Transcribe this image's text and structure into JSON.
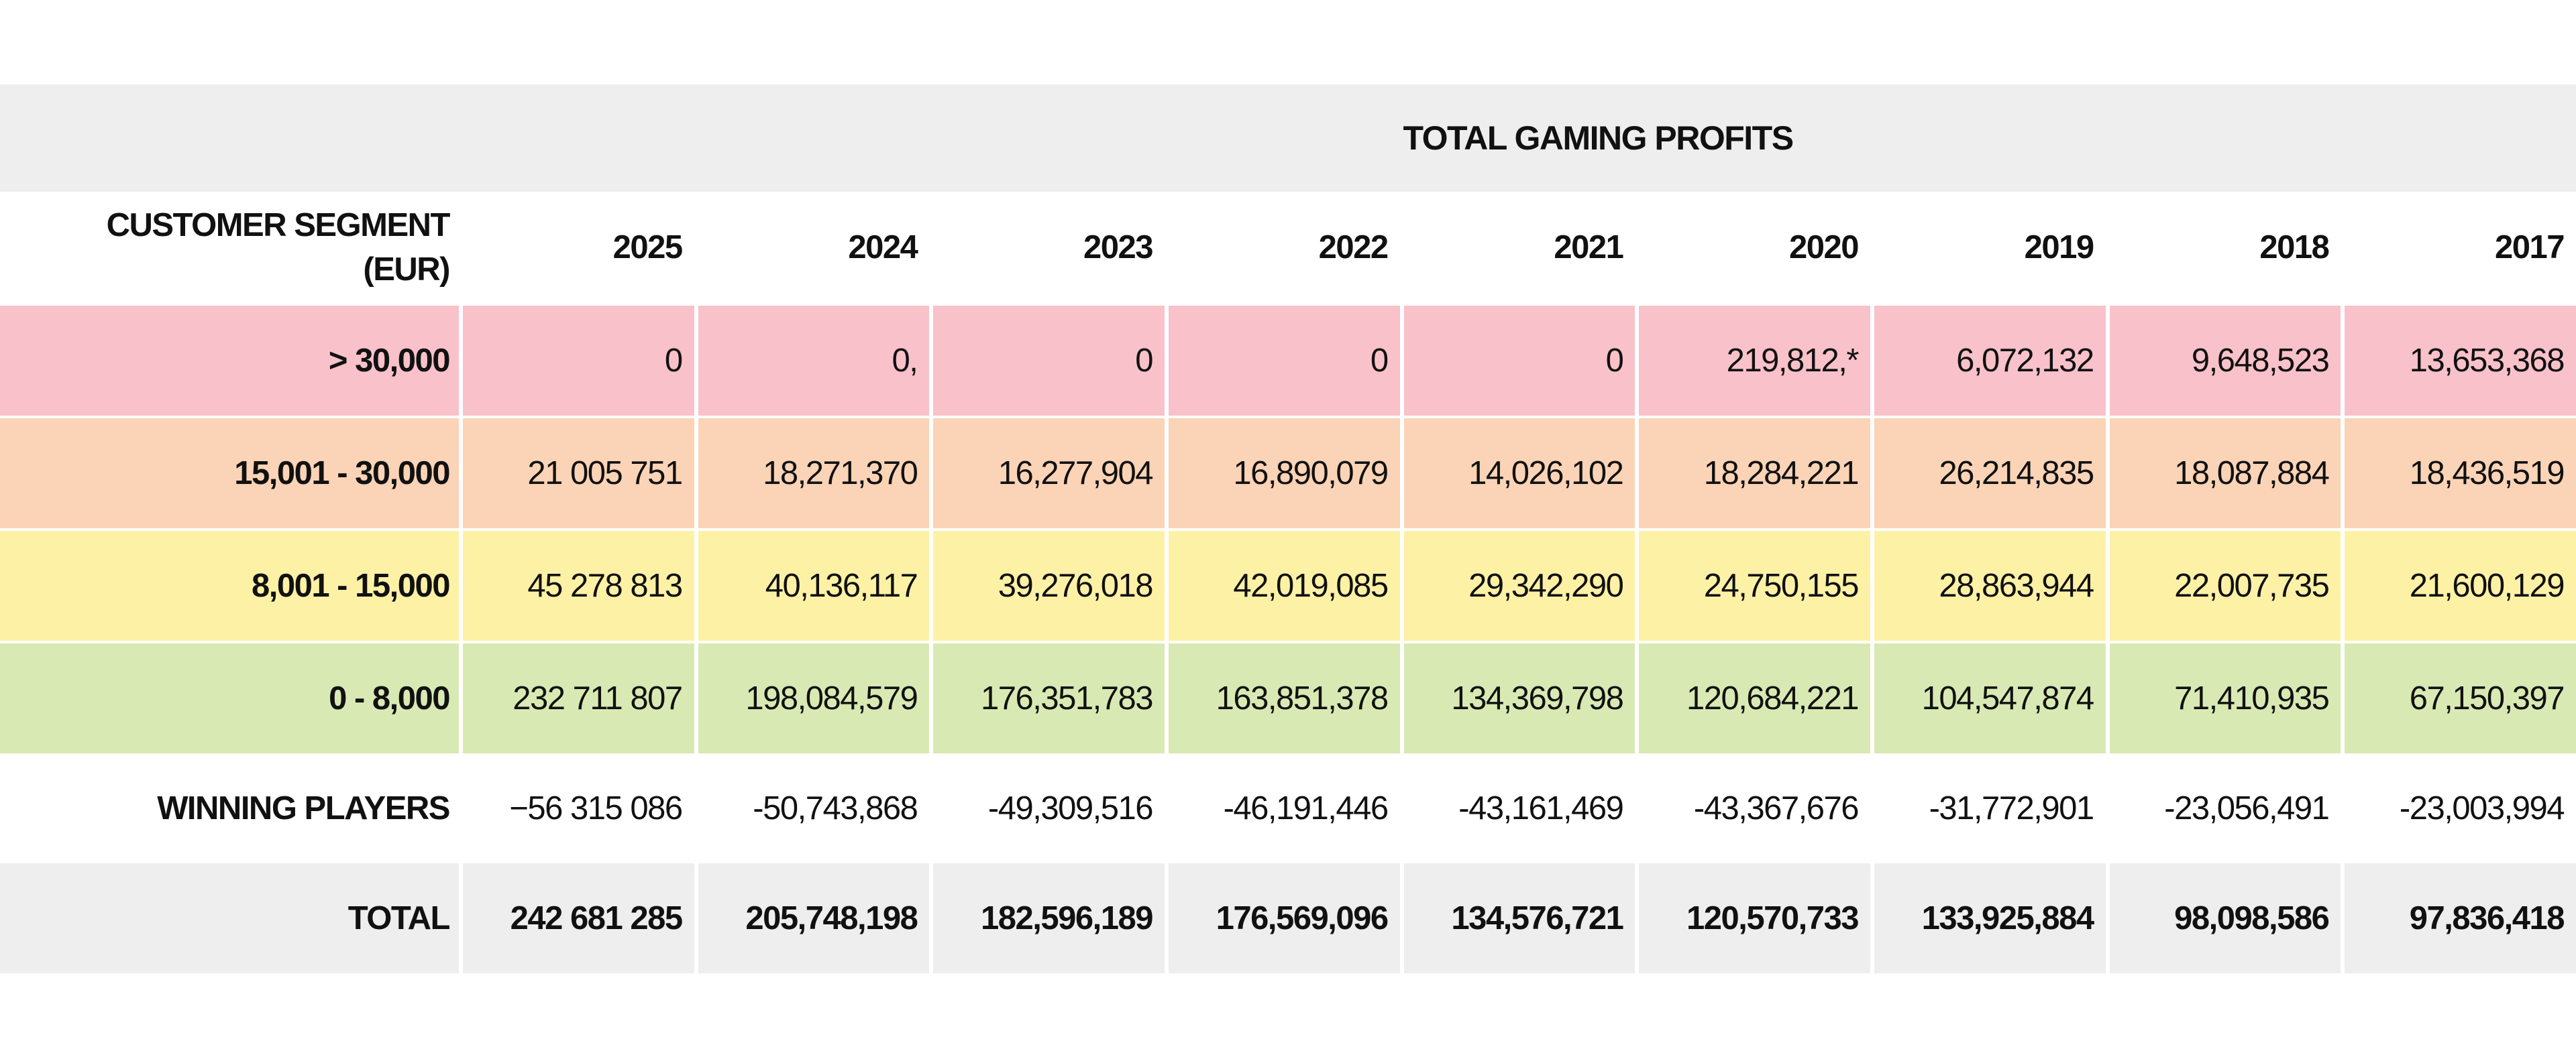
{
  "table": {
    "title": "TOTAL GAMING PROFITS",
    "header_label_line1": "CUSTOMER SEGMENT",
    "header_label_line2": "(EUR)",
    "years": [
      "2025",
      "2024",
      "2023",
      "2022",
      "2021",
      "2020",
      "2019",
      "2018",
      "2017"
    ],
    "rows": [
      {
        "label": "> 30,000",
        "color": "#f9c1c9",
        "values": [
          "0",
          "0,",
          "0",
          "0",
          "0",
          "219,812,*",
          "6,072,132",
          "9,648,523",
          "13,653,368"
        ]
      },
      {
        "label": "15,001 - 30,000",
        "color": "#fbd3b6",
        "values": [
          "21 005 751",
          "18,271,370",
          "16,277,904",
          "16,890,079",
          "14,026,102",
          "18,284,221",
          "26,214,835",
          "18,087,884",
          "18,436,519"
        ]
      },
      {
        "label": "8,001 - 15,000",
        "color": "#fdf1a6",
        "values": [
          "45 278 813",
          "40,136,117",
          "39,276,018",
          "42,019,085",
          "29,342,290",
          "24,750,155",
          "28,863,944",
          "22,007,735",
          "21,600,129"
        ]
      },
      {
        "label": "0 - 8,000",
        "color": "#d9e9b3",
        "values": [
          "232 711 807",
          "198,084,579",
          "176,351,783",
          "163,851,378",
          "134,369,798",
          "120,684,221",
          "104,547,874",
          "71,410,935",
          "67,150,397"
        ]
      },
      {
        "label": "WINNING PLAYERS",
        "color": "#ffffff",
        "values": [
          "−56 315 086",
          "-50,743,868",
          "-49,309,516",
          "-46,191,446",
          "-43,161,469",
          "-43,367,676",
          "-31,772,901",
          "-23,056,491",
          "-23,003,994"
        ]
      },
      {
        "label": "TOTAL",
        "color": "#eeeeee",
        "values": [
          "242 681 285",
          "205,748,198",
          "182,596,189",
          "176,569,096",
          "134,576,721",
          "120,570,733",
          "133,925,884",
          "98,098,586",
          "97,836,418"
        ]
      }
    ]
  },
  "chart_data": {
    "type": "table",
    "title": "TOTAL GAMING PROFITS",
    "columns": [
      "CUSTOMER SEGMENT (EUR)",
      "2025",
      "2024",
      "2023",
      "2022",
      "2021",
      "2020",
      "2019",
      "2018",
      "2017"
    ],
    "rows": [
      [
        "> 30,000",
        "0",
        "0,",
        "0",
        "0",
        "0",
        "219,812,*",
        "6,072,132",
        "9,648,523",
        "13,653,368"
      ],
      [
        "15,001 - 30,000",
        "21 005 751",
        "18,271,370",
        "16,277,904",
        "16,890,079",
        "14,026,102",
        "18,284,221",
        "26,214,835",
        "18,087,884",
        "18,436,519"
      ],
      [
        "8,001 - 15,000",
        "45 278 813",
        "40,136,117",
        "39,276,018",
        "42,019,085",
        "29,342,290",
        "24,750,155",
        "28,863,944",
        "22,007,735",
        "21,600,129"
      ],
      [
        "0 - 8,000",
        "232 711 807",
        "198,084,579",
        "176,351,783",
        "163,851,378",
        "134,369,798",
        "120,684,221",
        "104,547,874",
        "71,410,935",
        "67,150,397"
      ],
      [
        "WINNING PLAYERS",
        "−56 315 086",
        "-50,743,868",
        "-49,309,516",
        "-46,191,446",
        "-43,161,469",
        "-43,367,676",
        "-31,772,901",
        "-23,056,491",
        "-23,003,994"
      ],
      [
        "TOTAL",
        "242 681 285",
        "205,748,198",
        "182,596,189",
        "176,569,096",
        "134,576,721",
        "120,570,733",
        "133,925,884",
        "98,098,586",
        "97,836,418"
      ]
    ]
  }
}
